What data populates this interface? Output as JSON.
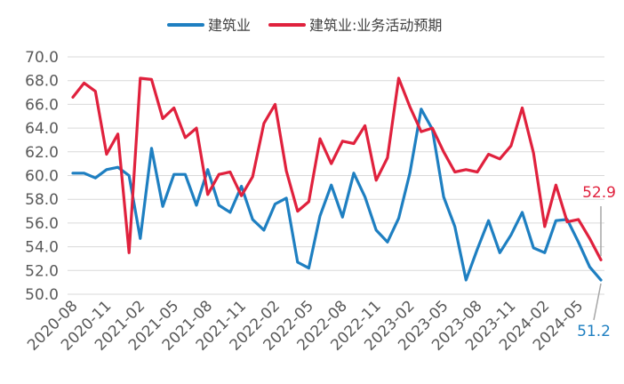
{
  "chart_data": {
    "type": "line",
    "title": "",
    "xlabel": "",
    "ylabel": "",
    "ylim": [
      50,
      70
    ],
    "yticks": [
      "70.0",
      "68.0",
      "66.0",
      "64.0",
      "62.0",
      "60.0",
      "58.0",
      "56.0",
      "54.0",
      "52.0",
      "50.0"
    ],
    "x": [
      "2020-08",
      "2020-09",
      "2020-10",
      "2020-11",
      "2020-12",
      "2021-01",
      "2021-02",
      "2021-03",
      "2021-04",
      "2021-05",
      "2021-06",
      "2021-07",
      "2021-08",
      "2021-09",
      "2021-10",
      "2021-11",
      "2021-12",
      "2022-01",
      "2022-02",
      "2022-03",
      "2022-04",
      "2022-05",
      "2022-06",
      "2022-07",
      "2022-08",
      "2022-09",
      "2022-10",
      "2022-11",
      "2022-12",
      "2023-01",
      "2023-02",
      "2023-03",
      "2023-04",
      "2023-05",
      "2023-06",
      "2023-07",
      "2023-08",
      "2023-09",
      "2023-10",
      "2023-11",
      "2023-12",
      "2024-01",
      "2024-02",
      "2024-03",
      "2024-04",
      "2024-05",
      "2024-06",
      "2024-07"
    ],
    "xticks_shown": [
      "2020-08",
      "2020-11",
      "2021-02",
      "2021-05",
      "2021-08",
      "2021-11",
      "2022-02",
      "2022-05",
      "2022-08",
      "2022-11",
      "2023-02",
      "2023-05",
      "2023-08",
      "2023-11",
      "2024-02",
      "2024-05"
    ],
    "legend_position": "top-center",
    "grid": "horizontal",
    "series": [
      {
        "name": "建筑业",
        "color": "#1e7fc1",
        "values": [
          60.2,
          60.2,
          59.8,
          60.5,
          60.7,
          60.0,
          54.7,
          62.3,
          57.4,
          60.1,
          60.1,
          57.5,
          60.5,
          57.5,
          56.9,
          59.1,
          56.3,
          55.4,
          57.6,
          58.1,
          52.7,
          52.2,
          56.6,
          59.2,
          56.5,
          60.2,
          58.2,
          55.4,
          54.4,
          56.4,
          60.2,
          65.6,
          63.9,
          58.2,
          55.7,
          51.2,
          53.8,
          56.2,
          53.5,
          55.0,
          56.9,
          53.9,
          53.5,
          56.2,
          56.3,
          54.4,
          52.3,
          51.2
        ],
        "end_label": "51.2"
      },
      {
        "name": "建筑业:业务活动预期",
        "color": "#e0213d",
        "values": [
          66.6,
          67.8,
          67.1,
          61.8,
          63.5,
          53.5,
          68.2,
          68.1,
          64.8,
          65.7,
          63.2,
          64.0,
          58.4,
          60.1,
          60.3,
          58.3,
          59.9,
          64.4,
          66.0,
          60.4,
          57.0,
          57.8,
          63.1,
          61.0,
          62.9,
          62.7,
          64.2,
          59.6,
          61.5,
          68.2,
          65.8,
          63.7,
          64.0,
          62.0,
          60.3,
          60.5,
          60.3,
          61.8,
          61.4,
          62.5,
          65.7,
          61.9,
          55.7,
          59.2,
          56.1,
          56.3,
          54.7,
          52.9
        ],
        "end_label": "52.9"
      }
    ]
  }
}
